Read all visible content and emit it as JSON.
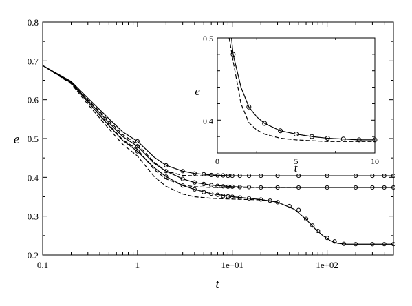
{
  "chart_data": [
    {
      "id": "main",
      "type": "line",
      "xlabel": "t",
      "ylabel": "e",
      "xscale": "log",
      "xlim": [
        0.1,
        500
      ],
      "ylim": [
        0.2,
        0.8
      ],
      "x_ticks": [
        0.1,
        1,
        10,
        100
      ],
      "x_tick_labels": [
        "0.1",
        "1",
        "1e+01",
        "1e+02"
      ],
      "y_ticks": [
        0.2,
        0.3,
        0.4,
        0.5,
        0.6,
        0.7,
        0.8
      ],
      "y_tick_labels": [
        "0.2",
        "0.3",
        "0.4",
        "0.5",
        "0.6",
        "0.7",
        "0.8"
      ],
      "grid": false,
      "legend": "none",
      "series": [
        {
          "style": "solid",
          "color": "#000000",
          "x": [
            0.1,
            0.2,
            0.3,
            0.5,
            0.7,
            1,
            1.5,
            2,
            3,
            4,
            6,
            10,
            20,
            50,
            100,
            200,
            500
          ],
          "y": [
            0.688,
            0.647,
            0.604,
            0.551,
            0.517,
            0.493,
            0.452,
            0.431,
            0.416,
            0.41,
            0.406,
            0.404,
            0.404,
            0.404,
            0.404,
            0.404,
            0.404
          ]
        },
        {
          "style": "solid",
          "color": "#000000",
          "x": [
            0.1,
            0.2,
            0.3,
            0.5,
            0.7,
            1,
            1.5,
            2,
            3,
            4,
            6,
            10,
            20,
            50,
            100,
            200,
            500
          ],
          "y": [
            0.688,
            0.645,
            0.598,
            0.541,
            0.505,
            0.48,
            0.436,
            0.416,
            0.396,
            0.387,
            0.38,
            0.376,
            0.374,
            0.374,
            0.374,
            0.374,
            0.374
          ]
        },
        {
          "style": "solid",
          "color": "#000000",
          "x": [
            0.1,
            0.2,
            0.3,
            0.5,
            0.7,
            1,
            1.5,
            2,
            3,
            4,
            6,
            10,
            20,
            30,
            45,
            60,
            75,
            90,
            110,
            130,
            160,
            200,
            300,
            500
          ],
          "y": [
            0.688,
            0.643,
            0.594,
            0.533,
            0.495,
            0.467,
            0.425,
            0.402,
            0.379,
            0.369,
            0.358,
            0.35,
            0.343,
            0.336,
            0.318,
            0.292,
            0.267,
            0.25,
            0.236,
            0.23,
            0.228,
            0.228,
            0.228,
            0.228
          ]
        },
        {
          "style": "dashed",
          "color": "#000000",
          "x": [
            0.1,
            0.2,
            0.3,
            0.5,
            0.7,
            1,
            1.5,
            2,
            3,
            4,
            6,
            10,
            20,
            50
          ],
          "y": [
            0.688,
            0.645,
            0.6,
            0.546,
            0.51,
            0.485,
            0.439,
            0.416,
            0.405,
            0.404,
            0.404,
            0.404,
            0.404,
            0.404
          ]
        },
        {
          "style": "dashed",
          "color": "#000000",
          "x": [
            0.1,
            0.2,
            0.3,
            0.5,
            0.7,
            1,
            1.5,
            2,
            3,
            4,
            6,
            10,
            20,
            50
          ],
          "y": [
            0.688,
            0.643,
            0.594,
            0.536,
            0.497,
            0.472,
            0.42,
            0.396,
            0.38,
            0.376,
            0.374,
            0.374,
            0.374,
            0.374
          ]
        },
        {
          "style": "dashed",
          "color": "#000000",
          "x": [
            0.1,
            0.2,
            0.3,
            0.5,
            0.7,
            1,
            1.5,
            2,
            3,
            4,
            6,
            10,
            20,
            30
          ],
          "y": [
            0.688,
            0.641,
            0.588,
            0.525,
            0.485,
            0.455,
            0.402,
            0.377,
            0.357,
            0.35,
            0.346,
            0.344,
            0.342,
            0.338
          ]
        },
        {
          "style": "circles",
          "color": "#000000",
          "x": [
            1,
            2,
            3,
            4,
            5,
            6,
            7,
            8,
            9,
            10,
            12,
            15,
            20,
            30,
            50,
            100,
            200,
            300,
            400,
            500
          ],
          "y": [
            0.493,
            0.431,
            0.416,
            0.41,
            0.408,
            0.406,
            0.405,
            0.405,
            0.404,
            0.404,
            0.404,
            0.404,
            0.404,
            0.404,
            0.404,
            0.404,
            0.404,
            0.404,
            0.404,
            0.404
          ]
        },
        {
          "style": "circles",
          "color": "#000000",
          "x": [
            1,
            2,
            3,
            4,
            5,
            6,
            7,
            8,
            9,
            10,
            12,
            15,
            20,
            30,
            50,
            100,
            200,
            300,
            400,
            500
          ],
          "y": [
            0.48,
            0.416,
            0.396,
            0.387,
            0.383,
            0.38,
            0.378,
            0.377,
            0.376,
            0.376,
            0.375,
            0.375,
            0.374,
            0.374,
            0.374,
            0.374,
            0.374,
            0.374,
            0.374,
            0.374
          ]
        },
        {
          "style": "circles",
          "color": "#000000",
          "x": [
            1,
            2,
            3,
            4,
            5,
            6,
            7,
            8,
            9,
            10,
            12,
            15,
            20,
            25,
            30,
            40,
            50,
            60,
            70,
            80,
            100,
            120,
            150,
            200,
            300,
            400,
            500
          ],
          "y": [
            0.467,
            0.402,
            0.379,
            0.369,
            0.362,
            0.358,
            0.355,
            0.352,
            0.351,
            0.35,
            0.348,
            0.346,
            0.343,
            0.34,
            0.336,
            0.326,
            0.316,
            0.293,
            0.276,
            0.262,
            0.244,
            0.235,
            0.229,
            0.228,
            0.228,
            0.228,
            0.228
          ]
        }
      ]
    },
    {
      "id": "inset",
      "type": "line",
      "xlabel": "t",
      "ylabel": "e",
      "xscale": "linear",
      "xlim": [
        0,
        10
      ],
      "ylim": [
        0.36,
        0.5
      ],
      "x_ticks": [
        0,
        5,
        10
      ],
      "x_tick_labels": [
        "0",
        "5",
        "10"
      ],
      "y_ticks": [
        0.4,
        0.5
      ],
      "y_tick_labels": [
        "0.4",
        "0.5"
      ],
      "grid": false,
      "legend": "none",
      "series": [
        {
          "style": "solid",
          "color": "#000000",
          "x": [
            0.9,
            1,
            1.5,
            2,
            2.5,
            3,
            4,
            5,
            6,
            7,
            8,
            9,
            10
          ],
          "y": [
            0.5,
            0.48,
            0.44,
            0.416,
            0.404,
            0.396,
            0.387,
            0.383,
            0.38,
            0.378,
            0.377,
            0.376,
            0.376
          ]
        },
        {
          "style": "dashed",
          "color": "#000000",
          "x": [
            0.75,
            1,
            1.5,
            2,
            2.5,
            3,
            4,
            5,
            6,
            7,
            8,
            10
          ],
          "y": [
            0.5,
            0.472,
            0.42,
            0.397,
            0.388,
            0.383,
            0.378,
            0.376,
            0.375,
            0.374,
            0.374,
            0.374
          ]
        },
        {
          "style": "circles",
          "color": "#000000",
          "x": [
            1,
            2,
            3,
            4,
            5,
            6,
            7,
            8,
            9,
            10
          ],
          "y": [
            0.48,
            0.416,
            0.396,
            0.387,
            0.383,
            0.38,
            0.378,
            0.377,
            0.376,
            0.376
          ]
        }
      ]
    }
  ]
}
